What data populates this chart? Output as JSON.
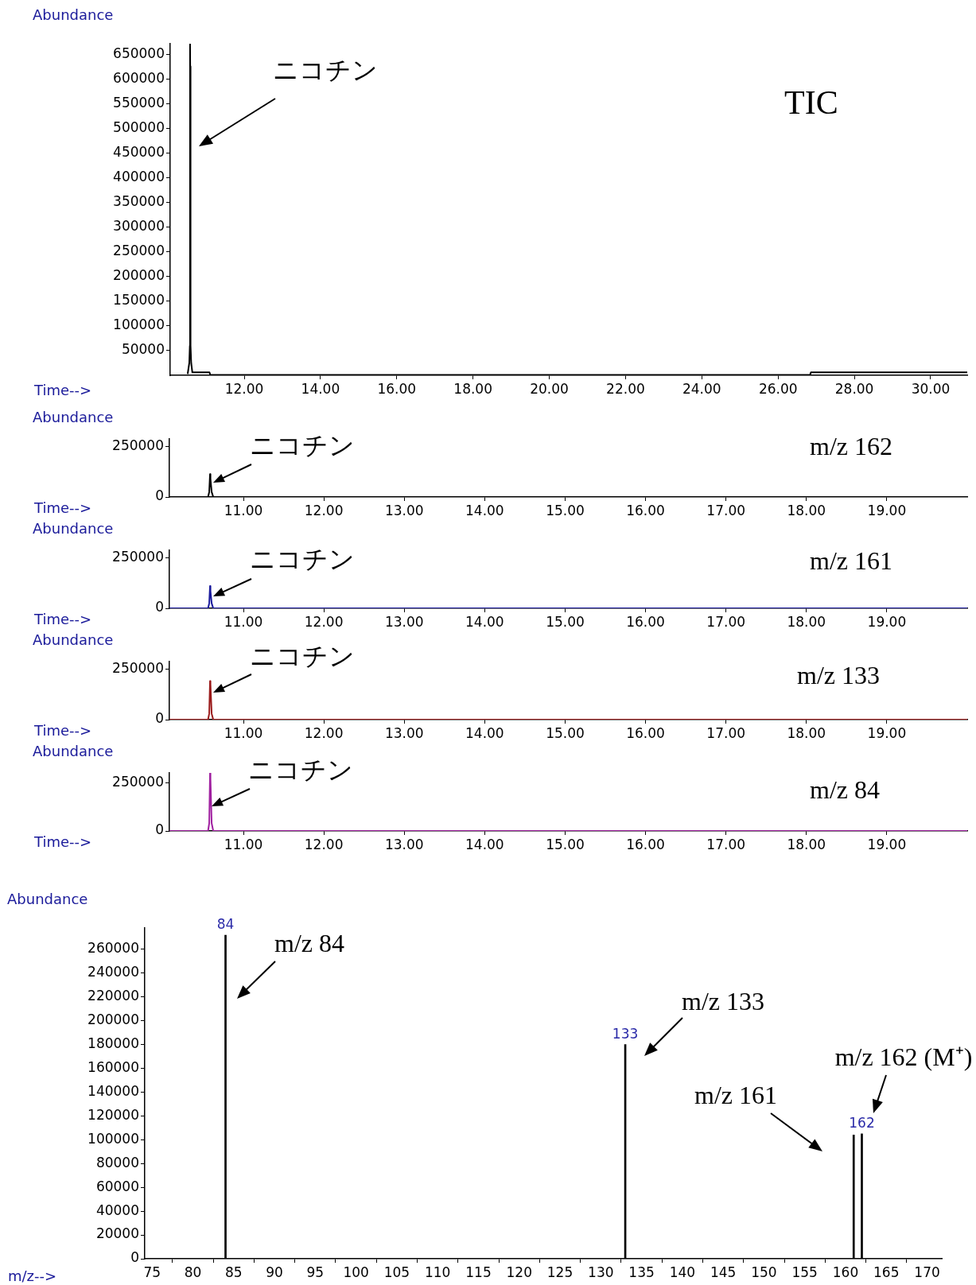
{
  "chart_data": [
    {
      "type": "line",
      "title": "TIC",
      "xlabel": "Time-->",
      "ylabel": "Abundance",
      "x": [
        10.52,
        10.56,
        10.575,
        10.58,
        10.584,
        10.59,
        10.596,
        10.61,
        10.64,
        11.09,
        11.11,
        26.84,
        26.86,
        30.96
      ],
      "values": [
        4000,
        25000,
        60000,
        672000,
        626000,
        626000,
        60000,
        25000,
        6000,
        6000,
        1000,
        1000,
        6000,
        6000
      ],
      "color": "#000000",
      "xlim": [
        10.06,
        30.96
      ],
      "xticks": [
        {
          "value": 12,
          "label": "12.00"
        },
        {
          "value": 14,
          "label": "14.00"
        },
        {
          "value": 16,
          "label": "16.00"
        },
        {
          "value": 18,
          "label": "18.00"
        },
        {
          "value": 20,
          "label": "20.00"
        },
        {
          "value": 22,
          "label": "22.00"
        },
        {
          "value": 24,
          "label": "24.00"
        },
        {
          "value": 26,
          "label": "26.00"
        },
        {
          "value": 28,
          "label": "28.00"
        },
        {
          "value": 30,
          "label": "30.00"
        }
      ],
      "ylim": [
        0,
        672000
      ],
      "yticks": [
        50000,
        100000,
        150000,
        200000,
        250000,
        300000,
        350000,
        400000,
        450000,
        500000,
        550000,
        600000,
        650000
      ],
      "annotations": [
        "ニコチン"
      ]
    },
    {
      "type": "line",
      "title": "m/z 162",
      "xlabel": "Time-->",
      "ylabel": "Abundance",
      "x": [
        10.54,
        10.56,
        10.575,
        10.585,
        10.59,
        10.605,
        10.625,
        10.64
      ],
      "values": [
        0,
        0,
        25000,
        113000,
        90000,
        25000,
        0,
        0
      ],
      "color": "#000000",
      "xlim": [
        10.08,
        20.0
      ],
      "xticks": [
        {
          "value": 11,
          "label": "11.00"
        },
        {
          "value": 12,
          "label": "12.00"
        },
        {
          "value": 13,
          "label": "13.00"
        },
        {
          "value": 14,
          "label": "14.00"
        },
        {
          "value": 15,
          "label": "15.00"
        },
        {
          "value": 16,
          "label": "16.00"
        },
        {
          "value": 17,
          "label": "17.00"
        },
        {
          "value": 18,
          "label": "18.00"
        },
        {
          "value": 19,
          "label": "19.00"
        }
      ],
      "ylim": [
        0,
        288000
      ],
      "yticks": [
        0,
        250000
      ],
      "annotations": [
        "ニコチン"
      ]
    },
    {
      "type": "line",
      "title": "m/z 161",
      "xlabel": "Time-->",
      "ylabel": "Abundance",
      "x": [
        10.08,
        10.56,
        10.575,
        10.585,
        10.59,
        10.605,
        10.625,
        20.0
      ],
      "values": [
        0,
        0,
        25000,
        110000,
        85000,
        25000,
        0,
        0
      ],
      "color": "#1a1a9c",
      "xlim": [
        10.08,
        20.0
      ],
      "xticks": [
        {
          "value": 11,
          "label": "11.00"
        },
        {
          "value": 12,
          "label": "12.00"
        },
        {
          "value": 13,
          "label": "13.00"
        },
        {
          "value": 14,
          "label": "14.00"
        },
        {
          "value": 15,
          "label": "15.00"
        },
        {
          "value": 16,
          "label": "16.00"
        },
        {
          "value": 17,
          "label": "17.00"
        },
        {
          "value": 18,
          "label": "18.00"
        },
        {
          "value": 19,
          "label": "19.00"
        }
      ],
      "ylim": [
        0,
        288000
      ],
      "yticks": [
        0,
        250000
      ],
      "annotations": [
        "ニコチン"
      ]
    },
    {
      "type": "line",
      "title": "m/z 133",
      "xlabel": "Time-->",
      "ylabel": "Abundance",
      "x": [
        10.08,
        10.56,
        10.575,
        10.585,
        10.59,
        10.605,
        10.625,
        20.0
      ],
      "values": [
        0,
        0,
        30000,
        191000,
        175000,
        30000,
        0,
        0
      ],
      "color": "#9a1a1a",
      "xlim": [
        10.08,
        20.0
      ],
      "xticks": [
        {
          "value": 11,
          "label": "11.00"
        },
        {
          "value": 12,
          "label": "12.00"
        },
        {
          "value": 13,
          "label": "13.00"
        },
        {
          "value": 14,
          "label": "14.00"
        },
        {
          "value": 15,
          "label": "15.00"
        },
        {
          "value": 16,
          "label": "16.00"
        },
        {
          "value": 17,
          "label": "17.00"
        },
        {
          "value": 18,
          "label": "18.00"
        },
        {
          "value": 19,
          "label": "19.00"
        }
      ],
      "ylim": [
        0,
        288000
      ],
      "yticks": [
        0,
        250000
      ],
      "annotations": [
        "ニコチン"
      ]
    },
    {
      "type": "line",
      "title": "m/z 84",
      "xlabel": "Time-->",
      "ylabel": "Abundance",
      "x": [
        10.08,
        10.56,
        10.575,
        10.585,
        10.59,
        10.605,
        10.625,
        20.0
      ],
      "values": [
        0,
        0,
        40000,
        300000,
        270000,
        40000,
        0,
        0
      ],
      "color": "#a020a0",
      "xlim": [
        10.08,
        20.0
      ],
      "xticks": [
        {
          "value": 11,
          "label": "11.00"
        },
        {
          "value": 12,
          "label": "12.00"
        },
        {
          "value": 13,
          "label": "13.00"
        },
        {
          "value": 14,
          "label": "14.00"
        },
        {
          "value": 15,
          "label": "15.00"
        },
        {
          "value": 16,
          "label": "16.00"
        },
        {
          "value": 17,
          "label": "17.00"
        },
        {
          "value": 18,
          "label": "18.00"
        },
        {
          "value": 19,
          "label": "19.00"
        }
      ],
      "ylim": [
        0,
        300000
      ],
      "yticks": [
        0,
        250000
      ],
      "annotations": [
        "ニコチン"
      ]
    },
    {
      "type": "bar",
      "xlabel": "m/z-->",
      "ylabel": "Abundance",
      "x": [
        84,
        133,
        161,
        162
      ],
      "values": [
        272000,
        180000,
        104000,
        105000
      ],
      "color": "#000000",
      "xlim": [
        74.1,
        171.8
      ],
      "xticks": [
        75,
        80,
        85,
        90,
        95,
        100,
        105,
        110,
        115,
        120,
        125,
        130,
        135,
        140,
        145,
        150,
        155,
        160,
        165,
        170
      ],
      "ylim": [
        0,
        278000
      ],
      "yticks": [
        0,
        20000,
        40000,
        60000,
        80000,
        100000,
        120000,
        140000,
        160000,
        180000,
        200000,
        220000,
        240000,
        260000
      ],
      "annotations": [
        "m/z 84",
        "m/z 133",
        "m/z 161",
        "m/z 162 (M⁺)",
        {
          "text": "84",
          "x": 84,
          "y": 272000
        },
        {
          "text": "133",
          "x": 133,
          "y": 180000
        },
        {
          "text": "162",
          "x": 162,
          "y": 105000
        }
      ]
    }
  ]
}
